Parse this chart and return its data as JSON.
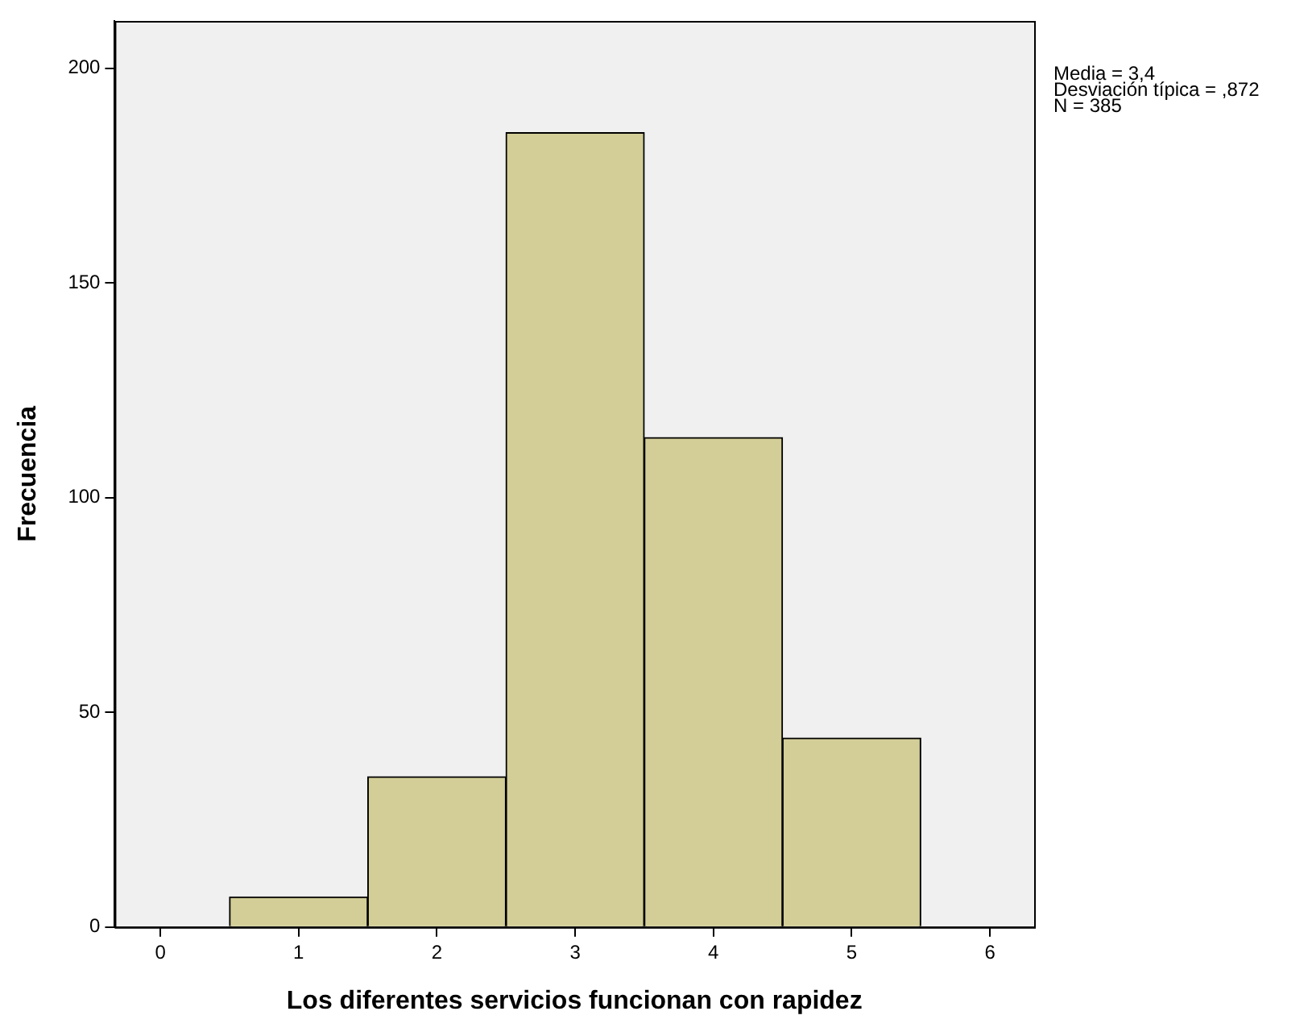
{
  "chart_data": {
    "type": "histogram",
    "xlabel": "Los diferentes servicios funcionan con rapidez",
    "ylabel": "Frecuencia",
    "bins": [
      0.5,
      1.5,
      2.5,
      3.5,
      4.5,
      5.5
    ],
    "values": [
      7,
      35,
      185,
      114,
      44
    ],
    "color": "#d3ce97",
    "xlim": [
      -0.33,
      6.32
    ],
    "xticks": [
      0,
      1,
      2,
      3,
      4,
      5,
      6
    ],
    "ylim": [
      0,
      211
    ],
    "yticks": [
      0,
      50,
      100,
      150,
      200
    ],
    "grid": false,
    "legend": false,
    "annotations": [
      "Media = 3,4",
      "Desviación típica = ,872",
      "N = 385"
    ]
  }
}
